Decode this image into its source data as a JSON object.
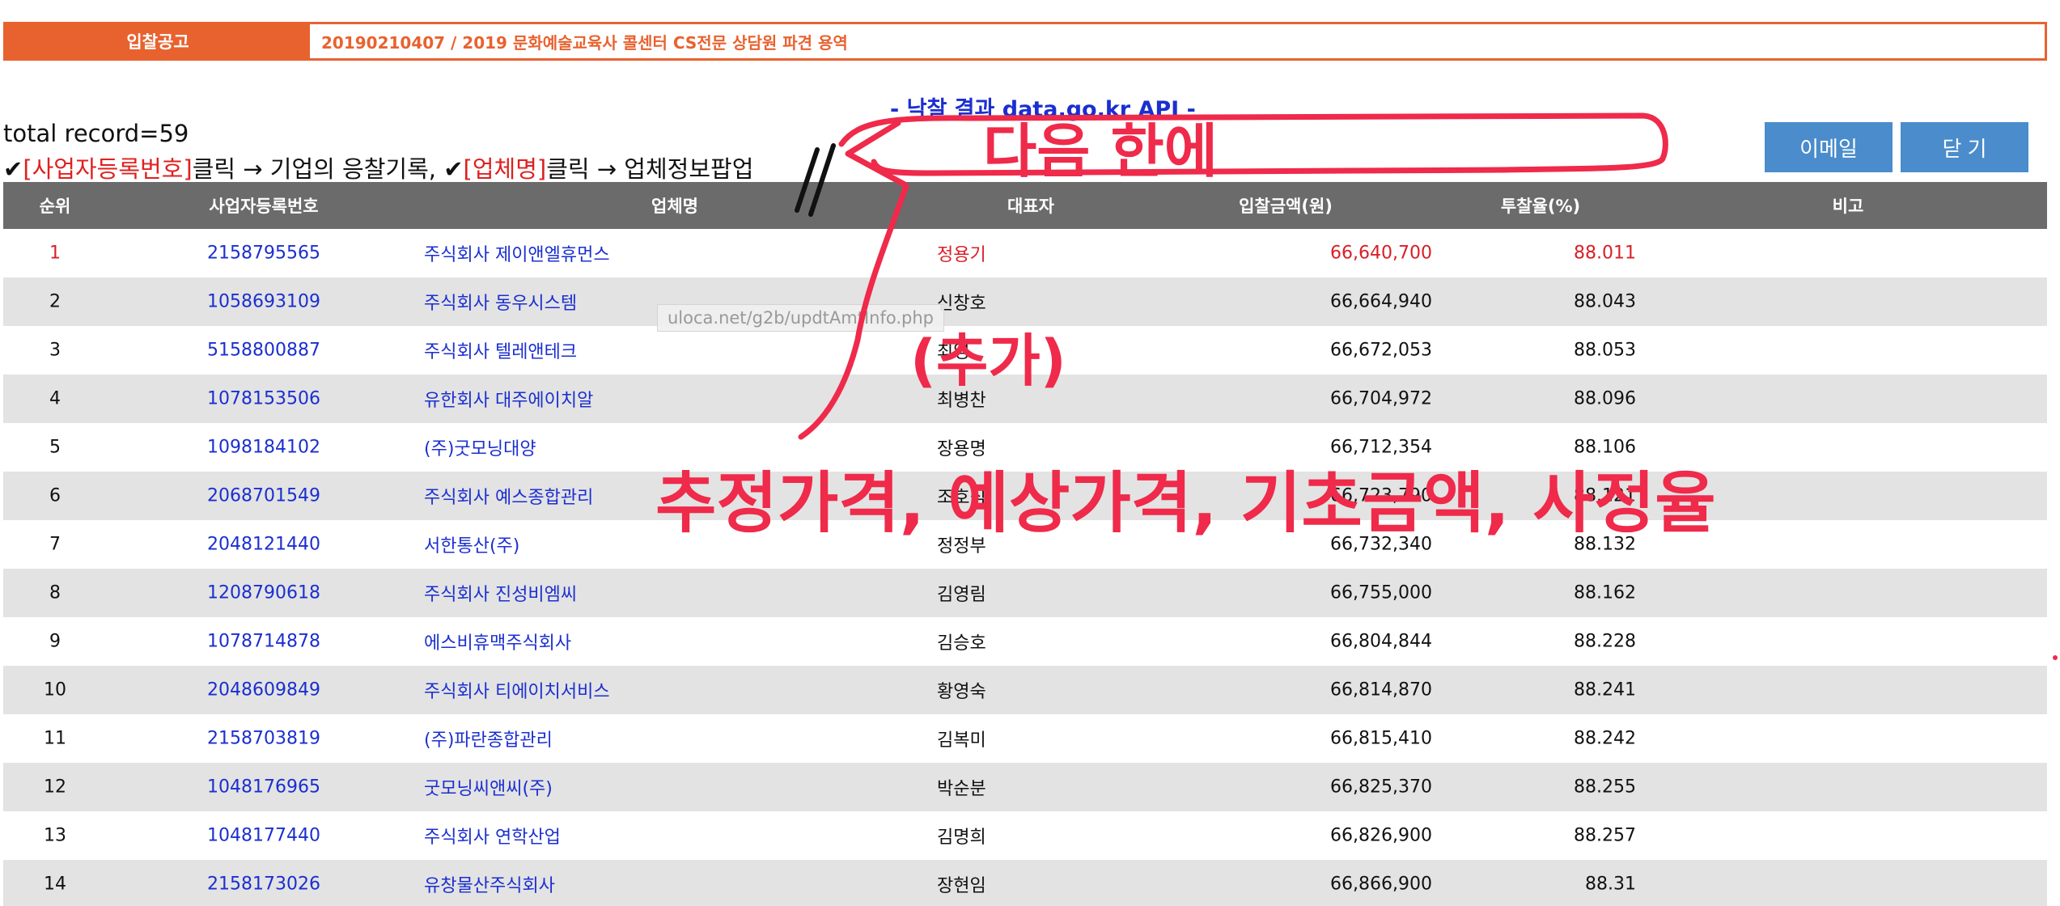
{
  "notice": {
    "label": "입찰공고",
    "title": "20190210407 / 2019 문화예술교육사 콜센터 CS전문 상담원 파견 용역"
  },
  "api_title": "- 낙찰 결과 data.go.kr API -",
  "total_record": "total record=59",
  "guide": {
    "check1": "✔",
    "part1": "[사업자등록번호]",
    "part2": "클릭 → 기업의 응찰기록, ",
    "check2": "✔",
    "part3": "[업체명]",
    "part4": "클릭 → 업체정보팝업"
  },
  "buttons": {
    "email": "이메일",
    "close": "닫 기"
  },
  "tooltip": "uloca.net/g2b/updtAmtInfo.php",
  "table": {
    "headers": {
      "rank": "순위",
      "biz_no": "사업자등록번호",
      "company": "업체명",
      "ceo": "대표자",
      "amount": "입찰금액(원)",
      "rate": "투찰율(%)",
      "note": "비고"
    },
    "rows": [
      {
        "rank": "1",
        "biz_no": "2158795565",
        "company": "주식회사 제이앤엘휴먼스",
        "ceo": "정용기",
        "amount": "66,640,700",
        "rate": "88.011"
      },
      {
        "rank": "2",
        "biz_no": "1058693109",
        "company": "주식회사 동우시스템",
        "ceo": "신창호",
        "amount": "66,664,940",
        "rate": "88.043"
      },
      {
        "rank": "3",
        "biz_no": "5158800887",
        "company": "주식회사 텔레앤테크",
        "ceo": "최영",
        "amount": "66,672,053",
        "rate": "88.053"
      },
      {
        "rank": "4",
        "biz_no": "1078153506",
        "company": "유한회사 대주에이치알",
        "ceo": "최병찬",
        "amount": "66,704,972",
        "rate": "88.096"
      },
      {
        "rank": "5",
        "biz_no": "1098184102",
        "company": "(주)굿모닝대양",
        "ceo": "장용명",
        "amount": "66,712,354",
        "rate": "88.106"
      },
      {
        "rank": "6",
        "biz_no": "2068701549",
        "company": "주식회사 예스종합관리",
        "ceo": "조호식",
        "amount": "66,723,790",
        "rate": "88.121"
      },
      {
        "rank": "7",
        "biz_no": "2048121440",
        "company": "서한통산(주)",
        "ceo": "정정부",
        "amount": "66,732,340",
        "rate": "88.132"
      },
      {
        "rank": "8",
        "biz_no": "1208790618",
        "company": "주식회사 진성비엠씨",
        "ceo": "김영림",
        "amount": "66,755,000",
        "rate": "88.162"
      },
      {
        "rank": "9",
        "biz_no": "1078714878",
        "company": "에스비휴맥주식회사",
        "ceo": "김승호",
        "amount": "66,804,844",
        "rate": "88.228"
      },
      {
        "rank": "10",
        "biz_no": "2048609849",
        "company": "주식회사 티에이치서비스",
        "ceo": "황영숙",
        "amount": "66,814,870",
        "rate": "88.241"
      },
      {
        "rank": "11",
        "biz_no": "2158703819",
        "company": "(주)파란종합관리",
        "ceo": "김복미",
        "amount": "66,815,410",
        "rate": "88.242"
      },
      {
        "rank": "12",
        "biz_no": "1048176965",
        "company": "굿모닝씨앤씨(주)",
        "ceo": "박순분",
        "amount": "66,825,370",
        "rate": "88.255"
      },
      {
        "rank": "13",
        "biz_no": "1048177440",
        "company": "주식회사 연학산업",
        "ceo": "김명희",
        "amount": "66,826,900",
        "rate": "88.257"
      },
      {
        "rank": "14",
        "biz_no": "2158173026",
        "company": "유창물산주식회사",
        "ceo": "장현임",
        "amount": "66,866,900",
        "rate": "88.31"
      }
    ]
  },
  "annotations": {
    "note_top": "다음 한에",
    "note_add": "(추가)",
    "note_bottom": "추정가격, 예상가격, 기초금액, 사정율"
  },
  "colors": {
    "notice_orange": "#e8622f",
    "button_blue": "#4a8ccc",
    "header_gray": "#6b6b6b",
    "link_blue": "#1b2fd0",
    "winner_red": "#d81f26",
    "annotation_red": "#ef2a4a"
  }
}
